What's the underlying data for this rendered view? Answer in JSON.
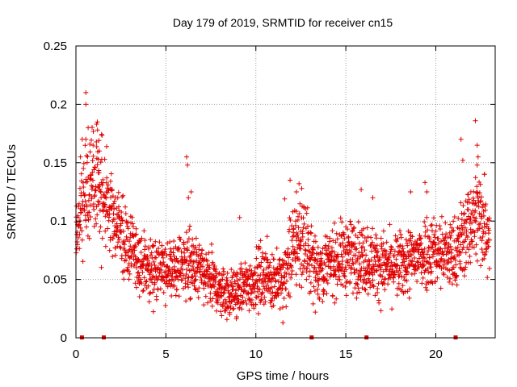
{
  "chart_data": {
    "type": "scatter",
    "title": "Day 179 of 2019, SRMTID for receiver cn15",
    "xlabel": "GPS time / hours",
    "ylabel": "SRMTID / TECUs",
    "xlim": [
      0,
      23.3
    ],
    "ylim": [
      0,
      0.25
    ],
    "x_ticks": [
      0,
      5,
      10,
      15,
      20
    ],
    "x_tick_labels": [
      "0",
      "5",
      "10",
      "15",
      "20"
    ],
    "y_ticks": [
      0,
      0.05,
      0.1,
      0.15,
      0.2,
      0.25
    ],
    "y_tick_labels": [
      "0",
      "0.05",
      "0.1",
      "0.15",
      "0.2",
      "0.25"
    ],
    "grid": true,
    "marker": "plus",
    "series": [
      {
        "name": "SRMTID cn15",
        "color": "#e00000",
        "envelope": {
          "x": [
            0,
            0.5,
            1.0,
            1.5,
            2.0,
            2.5,
            3,
            3.5,
            4,
            4.5,
            5,
            5.5,
            6,
            6.5,
            7,
            7.5,
            8,
            8.5,
            9,
            9.5,
            10,
            10.5,
            11,
            11.5,
            12,
            12.5,
            13,
            13.5,
            14,
            14.5,
            15,
            15.5,
            16,
            16.5,
            17,
            17.5,
            18,
            18.5,
            19,
            19.5,
            20,
            20.5,
            21,
            21.5,
            22,
            22.5,
            23
          ],
          "mean": [
            0.085,
            0.12,
            0.135,
            0.12,
            0.105,
            0.09,
            0.075,
            0.065,
            0.06,
            0.058,
            0.058,
            0.06,
            0.065,
            0.06,
            0.055,
            0.048,
            0.042,
            0.038,
            0.04,
            0.045,
            0.05,
            0.055,
            0.05,
            0.048,
            0.075,
            0.085,
            0.07,
            0.06,
            0.062,
            0.068,
            0.07,
            0.07,
            0.068,
            0.065,
            0.062,
            0.06,
            0.062,
            0.065,
            0.07,
            0.075,
            0.075,
            0.072,
            0.07,
            0.085,
            0.1,
            0.105,
            0.09
          ],
          "spread": [
            0.022,
            0.028,
            0.032,
            0.03,
            0.026,
            0.024,
            0.02,
            0.018,
            0.017,
            0.016,
            0.016,
            0.017,
            0.02,
            0.018,
            0.017,
            0.015,
            0.014,
            0.013,
            0.014,
            0.015,
            0.016,
            0.017,
            0.016,
            0.016,
            0.024,
            0.026,
            0.02,
            0.018,
            0.018,
            0.019,
            0.02,
            0.02,
            0.02,
            0.019,
            0.018,
            0.018,
            0.018,
            0.019,
            0.02,
            0.021,
            0.021,
            0.02,
            0.02,
            0.022,
            0.026,
            0.028,
            0.025
          ]
        },
        "peaks": [
          [
            0.55,
            0.21
          ],
          [
            0.55,
            0.2
          ],
          [
            0.55,
            0.17
          ],
          [
            0.68,
            0.18
          ],
          [
            0.35,
            0.17
          ],
          [
            1.15,
            0.183
          ],
          [
            1.2,
            0.178
          ],
          [
            1.3,
            0.16
          ],
          [
            1.25,
            0.153
          ],
          [
            0.25,
            0.155
          ],
          [
            0.95,
            0.165
          ],
          [
            6.15,
            0.155
          ],
          [
            6.2,
            0.148
          ],
          [
            6.4,
            0.125
          ],
          [
            6.25,
            0.12
          ],
          [
            9.1,
            0.103
          ],
          [
            11.9,
            0.135
          ],
          [
            12.4,
            0.132
          ],
          [
            12.55,
            0.128
          ],
          [
            12.25,
            0.125
          ],
          [
            11.6,
            0.119
          ],
          [
            15.85,
            0.127
          ],
          [
            16.5,
            0.12
          ],
          [
            18.6,
            0.125
          ],
          [
            19.4,
            0.133
          ],
          [
            19.5,
            0.125
          ],
          [
            21.4,
            0.17
          ],
          [
            21.5,
            0.152
          ],
          [
            22.2,
            0.186
          ],
          [
            22.3,
            0.165
          ],
          [
            22.35,
            0.155
          ],
          [
            22.3,
            0.148
          ],
          [
            22.7,
            0.14
          ],
          [
            21.95,
            0.125
          ],
          [
            11.5,
            0.013
          ],
          [
            13.3,
            0.022
          ],
          [
            8.55,
            0.02
          ],
          [
            8.1,
            0.019
          ]
        ],
        "n_points": 2200
      }
    ],
    "gap_markers_x": [
      0.33,
      1.55,
      13.1,
      16.15,
      21.1
    ]
  }
}
